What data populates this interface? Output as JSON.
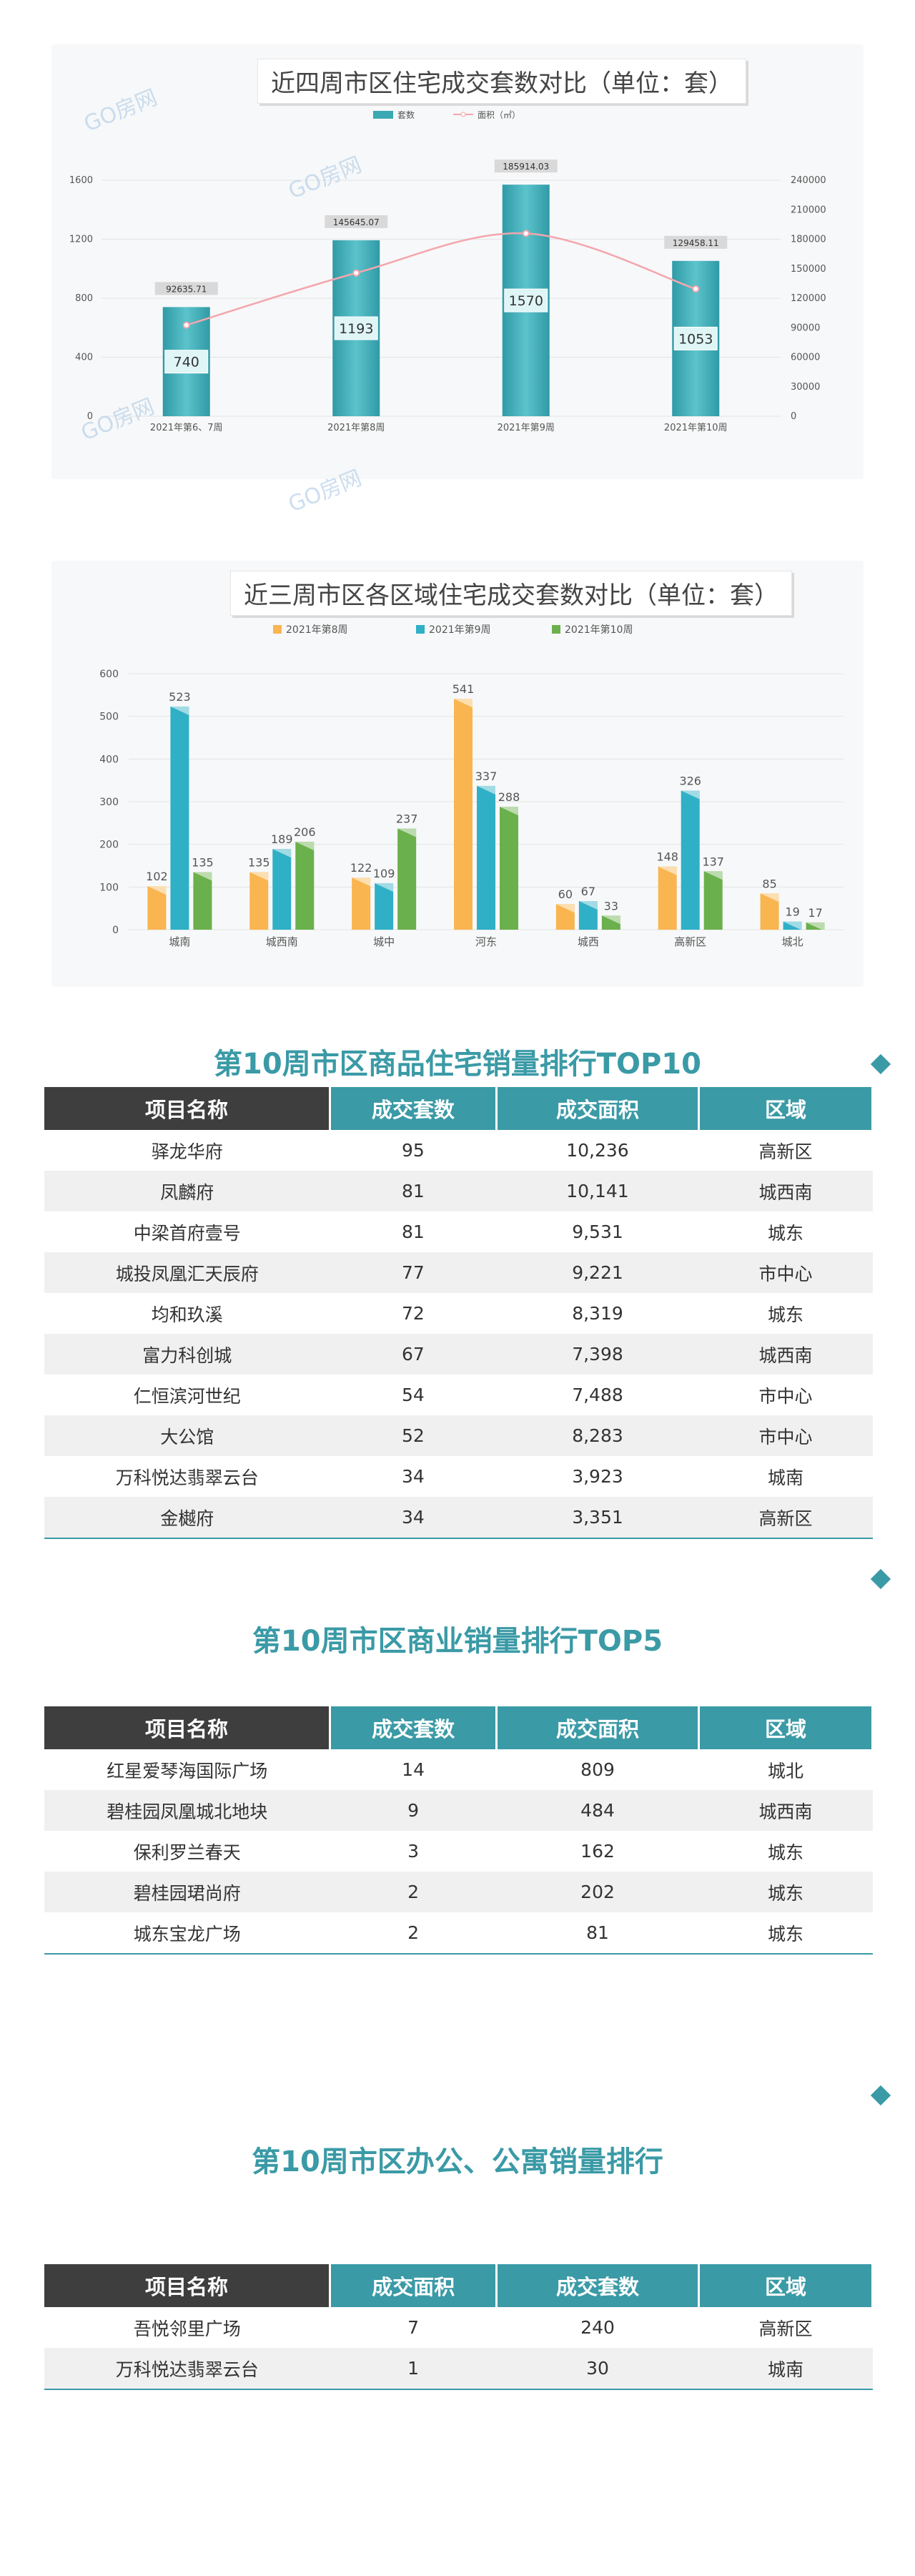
{
  "watermark": "GO房网",
  "chart_data": [
    {
      "type": "bar",
      "title": "近四周市区住宅成交套数对比（单位：套）",
      "categories": [
        "2021年第6、7周",
        "2021年第8周",
        "2021年第9周",
        "2021年第10周"
      ],
      "series": [
        {
          "name": "套数",
          "type": "bar",
          "axis": "left",
          "values": [
            740,
            1193,
            1570,
            1053
          ]
        },
        {
          "name": "面积（㎡）",
          "type": "line",
          "axis": "right",
          "values": [
            92635.71,
            145645.07,
            185914.03,
            129458.11
          ]
        }
      ],
      "value_labels": {
        "bar": [
          "740",
          "1193",
          "1570",
          "1053"
        ],
        "line": [
          "92635.71",
          "145645.07",
          "185914.03",
          "129458.11"
        ]
      },
      "y_left": {
        "range": [
          0,
          1600
        ],
        "ticks": [
          "0",
          "400",
          "800",
          "1200",
          "1600"
        ]
      },
      "y_right": {
        "range": [
          0,
          240000
        ],
        "ticks": [
          "0",
          "30000",
          "60000",
          "90000",
          "120000",
          "150000",
          "180000",
          "210000",
          "240000"
        ]
      },
      "legend_position": "top",
      "colors": {
        "bar": "#3aa9b4",
        "line": "#f4a6ad"
      }
    },
    {
      "type": "bar",
      "title": "近三周市区各区域住宅成交套数对比（单位：套）",
      "categories": [
        "城南",
        "城西南",
        "城中",
        "河东",
        "城西",
        "高新区",
        "城北"
      ],
      "series": [
        {
          "name": "2021年第8周",
          "values": [
            102,
            135,
            122,
            541,
            60,
            148,
            85
          ]
        },
        {
          "name": "2021年第9周",
          "values": [
            523,
            189,
            109,
            337,
            67,
            326,
            19
          ]
        },
        {
          "name": "2021年第10周",
          "values": [
            135,
            206,
            237,
            288,
            33,
            137,
            17
          ]
        }
      ],
      "value_labels": [
        [
          "102",
          "135",
          "122",
          "541",
          "60",
          "148",
          "85"
        ],
        [
          "523",
          "189",
          "109",
          "337",
          "67",
          "326",
          "19"
        ],
        [
          "135",
          "206",
          "237",
          "288",
          "33",
          "137",
          "17"
        ]
      ],
      "ylim": [
        0,
        600
      ],
      "y_ticks": [
        "0",
        "100",
        "200",
        "300",
        "400",
        "500",
        "600"
      ],
      "legend_position": "top",
      "colors": [
        "#f9b550",
        "#2fb0c6",
        "#6ab04c"
      ]
    }
  ],
  "tables": [
    {
      "title": "第10周市区商品住宅销量排行TOP10",
      "headers": [
        "项目名称",
        "成交套数",
        "成交面积",
        "区域"
      ],
      "rows": [
        [
          "驿龙华府",
          "95",
          "10,236",
          "高新区"
        ],
        [
          "凤麟府",
          "81",
          "10,141",
          "城西南"
        ],
        [
          "中梁首府壹号",
          "81",
          "9,531",
          "城东"
        ],
        [
          "城投凤凰汇天辰府",
          "77",
          "9,221",
          "市中心"
        ],
        [
          "均和玖溪",
          "72",
          "8,319",
          "城东"
        ],
        [
          "富力科创城",
          "67",
          "7,398",
          "城西南"
        ],
        [
          "仁恒滨河世纪",
          "54",
          "7,488",
          "市中心"
        ],
        [
          "大公馆",
          "52",
          "8,283",
          "市中心"
        ],
        [
          "万科悦达翡翠云台",
          "34",
          "3,923",
          "城南"
        ],
        [
          "金樾府",
          "34",
          "3,351",
          "高新区"
        ]
      ]
    },
    {
      "title": "第10周市区商业销量排行TOP5",
      "headers": [
        "项目名称",
        "成交套数",
        "成交面积",
        "区域"
      ],
      "rows": [
        [
          "红星爱琴海国际广场",
          "14",
          "809",
          "城北"
        ],
        [
          "碧桂园凤凰城北地块",
          "9",
          "484",
          "城西南"
        ],
        [
          "保利罗兰春天",
          "3",
          "162",
          "城东"
        ],
        [
          "碧桂园珺尚府",
          "2",
          "202",
          "城东"
        ],
        [
          "城东宝龙广场",
          "2",
          "81",
          "城东"
        ]
      ]
    },
    {
      "title": "第10周市区办公、公寓销量排行",
      "headers": [
        "项目名称",
        "成交面积",
        "成交套数",
        "区域"
      ],
      "rows": [
        [
          "吾悦邻里广场",
          "7",
          "240",
          "高新区"
        ],
        [
          "万科悦达翡翠云台",
          "1",
          "30",
          "城南"
        ]
      ]
    }
  ]
}
